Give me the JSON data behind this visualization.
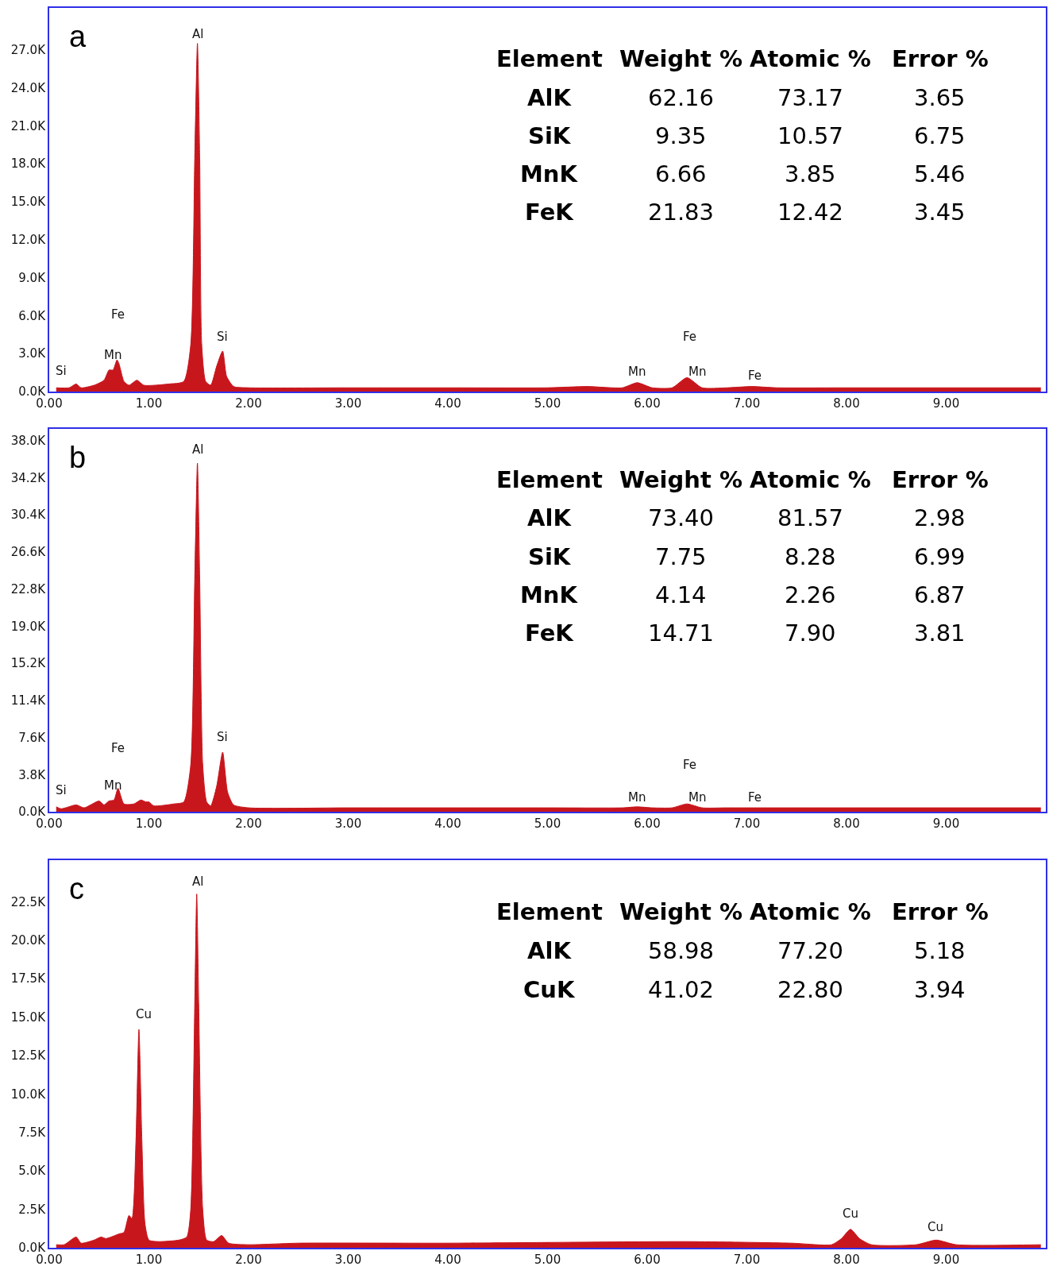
{
  "chart_data": [
    {
      "type": "area",
      "title": "a",
      "color": "#c8161d",
      "x": [
        0.07,
        0.2,
        0.27,
        0.32,
        0.45,
        0.55,
        0.6,
        0.64,
        0.68,
        0.7,
        0.75,
        0.8,
        0.88,
        0.95,
        1.2,
        1.35,
        1.42,
        1.46,
        1.487,
        1.51,
        1.53,
        1.57,
        1.62,
        1.68,
        1.74,
        1.78,
        1.85,
        2.0,
        3.0,
        4.0,
        5.0,
        5.4,
        5.75,
        5.9,
        6.05,
        6.25,
        6.4,
        6.55,
        6.8,
        7.05,
        7.3,
        8.0,
        9.95
      ],
      "values": [
        300,
        300,
        600,
        300,
        500,
        900,
        1700,
        1700,
        2500,
        2200,
        800,
        500,
        900,
        500,
        600,
        800,
        3700,
        18400,
        27500,
        18400,
        3700,
        800,
        500,
        2000,
        3200,
        1200,
        400,
        300,
        300,
        300,
        300,
        400,
        300,
        700,
        300,
        300,
        1100,
        300,
        300,
        400,
        300,
        300,
        300
      ],
      "xlim": [
        0,
        10
      ],
      "xticks": [
        {
          "value": 0,
          "label": "0.00"
        },
        {
          "value": 1,
          "label": "1.00"
        },
        {
          "value": 2,
          "label": "2.00"
        },
        {
          "value": 3,
          "label": "3.00"
        },
        {
          "value": 4,
          "label": "4.00"
        },
        {
          "value": 5,
          "label": "5.00"
        },
        {
          "value": 6,
          "label": "6.00"
        },
        {
          "value": 7,
          "label": "7.00"
        },
        {
          "value": 8,
          "label": "8.00"
        },
        {
          "value": 9,
          "label": "9.00"
        }
      ],
      "ylim": [
        0,
        30300
      ],
      "yticks": [
        {
          "value": 0,
          "label": "0.0K"
        },
        {
          "value": 3000,
          "label": "3.0K"
        },
        {
          "value": 6000,
          "label": "6.0K"
        },
        {
          "value": 9000,
          "label": "9.0K"
        },
        {
          "value": 12000,
          "label": "12.0K"
        },
        {
          "value": 15000,
          "label": "15.0K"
        },
        {
          "value": 18000,
          "label": "18.0K"
        },
        {
          "value": 21000,
          "label": "21.0K"
        },
        {
          "value": 24000,
          "label": "24.0K"
        },
        {
          "value": 27000,
          "label": "27.0K"
        }
      ],
      "annotations": [
        "Si",
        "Mn",
        "Fe",
        "Al",
        "Si",
        "Mn",
        "Fe",
        "Mn",
        "Fe",
        "Element",
        "Weight %",
        "Atomic %",
        "Error %",
        "AlK",
        "62.16",
        "73.17",
        "3.65",
        "SiK",
        "9.35",
        "10.57",
        "6.75",
        "MnK",
        "6.66",
        "3.85",
        "5.46",
        "FeK",
        "21.83",
        "12.42",
        "3.45"
      ]
    },
    {
      "type": "area",
      "title": "b",
      "color": "#c8161d",
      "x": [
        0.07,
        0.12,
        0.27,
        0.35,
        0.5,
        0.55,
        0.6,
        0.65,
        0.69,
        0.75,
        0.85,
        0.92,
        0.97,
        1.0,
        1.05,
        1.25,
        1.35,
        1.42,
        1.46,
        1.487,
        1.51,
        1.54,
        1.58,
        1.62,
        1.68,
        1.74,
        1.79,
        1.85,
        2.0,
        3.0,
        4.0,
        5.0,
        5.75,
        5.9,
        6.05,
        6.25,
        6.4,
        6.55,
        6.8,
        7.05,
        7.3,
        8.0,
        9.95
      ],
      "values": [
        500,
        300,
        700,
        400,
        1100,
        700,
        1100,
        1200,
        2400,
        800,
        800,
        1200,
        1000,
        1000,
        600,
        800,
        1000,
        4800,
        23800,
        35700,
        23800,
        4800,
        1000,
        600,
        2600,
        6100,
        2000,
        700,
        400,
        400,
        400,
        400,
        400,
        500,
        400,
        400,
        800,
        400,
        400,
        400,
        400,
        400,
        400
      ],
      "xlim": [
        0,
        10
      ],
      "xticks": [
        {
          "value": 0,
          "label": "0.00"
        },
        {
          "value": 1,
          "label": "1.00"
        },
        {
          "value": 2,
          "label": "2.00"
        },
        {
          "value": 3,
          "label": "3.00"
        },
        {
          "value": 4,
          "label": "4.00"
        },
        {
          "value": 5,
          "label": "5.00"
        },
        {
          "value": 6,
          "label": "6.00"
        },
        {
          "value": 7,
          "label": "7.00"
        },
        {
          "value": 8,
          "label": "8.00"
        },
        {
          "value": 9,
          "label": "9.00"
        }
      ],
      "ylim": [
        0,
        39200
      ],
      "yticks": [
        {
          "value": 0,
          "label": "0.0K"
        },
        {
          "value": 3800,
          "label": "3.8K"
        },
        {
          "value": 7600,
          "label": "7.6K"
        },
        {
          "value": 11400,
          "label": "11.4K"
        },
        {
          "value": 15200,
          "label": "15.2K"
        },
        {
          "value": 19000,
          "label": "19.0K"
        },
        {
          "value": 22800,
          "label": "22.8K"
        },
        {
          "value": 26600,
          "label": "26.6K"
        },
        {
          "value": 30400,
          "label": "30.4K"
        },
        {
          "value": 34200,
          "label": "34.2K"
        },
        {
          "value": 38000,
          "label": "38.0K"
        }
      ],
      "annotations": [
        "Si",
        "Mn",
        "Fe",
        "Al",
        "Si",
        "Mn",
        "Fe",
        "Mn",
        "Fe",
        "Element",
        "Weight %",
        "Atomic %",
        "Error %",
        "AlK",
        "73.40",
        "81.57",
        "2.98",
        "SiK",
        "7.75",
        "8.28",
        "6.99",
        "MnK",
        "4.14",
        "2.26",
        "6.87",
        "FeK",
        "14.71",
        "7.90",
        "3.81"
      ]
    },
    {
      "type": "area",
      "title": "c",
      "color": "#c8161d",
      "x": [
        0.07,
        0.15,
        0.27,
        0.32,
        0.45,
        0.52,
        0.57,
        0.7,
        0.75,
        0.8,
        0.83,
        0.87,
        0.9,
        0.93,
        0.96,
        1.0,
        1.1,
        1.3,
        1.38,
        1.42,
        1.46,
        1.48,
        1.5,
        1.54,
        1.58,
        1.65,
        1.73,
        1.8,
        2.0,
        2.5,
        4.0,
        6.4,
        7.45,
        7.85,
        7.95,
        8.04,
        8.13,
        8.25,
        8.7,
        8.9,
        9.1,
        9.95
      ],
      "values": [
        200,
        200,
        700,
        300,
        500,
        700,
        600,
        900,
        1000,
        2100,
        1900,
        6900,
        14200,
        6900,
        1600,
        500,
        400,
        500,
        700,
        2500,
        15800,
        23000,
        15800,
        2500,
        500,
        400,
        800,
        300,
        200,
        300,
        300,
        400,
        300,
        200,
        600,
        1200,
        600,
        200,
        200,
        500,
        200,
        200
      ],
      "xlim": [
        0,
        10
      ],
      "xticks": [
        {
          "value": 0,
          "label": "0.00"
        },
        {
          "value": 1,
          "label": "1.00"
        },
        {
          "value": 2,
          "label": "2.00"
        },
        {
          "value": 3,
          "label": "3.00"
        },
        {
          "value": 4,
          "label": "4.00"
        },
        {
          "value": 5,
          "label": "5.00"
        },
        {
          "value": 6,
          "label": "6.00"
        },
        {
          "value": 7,
          "label": "7.00"
        },
        {
          "value": 8,
          "label": "8.00"
        },
        {
          "value": 9,
          "label": "9.00"
        }
      ],
      "ylim": [
        0,
        25200
      ],
      "yticks": [
        {
          "value": 0,
          "label": "0.0K"
        },
        {
          "value": 2500,
          "label": "2.5K"
        },
        {
          "value": 5000,
          "label": "5.0K"
        },
        {
          "value": 7500,
          "label": "7.5K"
        },
        {
          "value": 10000,
          "label": "10.0K"
        },
        {
          "value": 12500,
          "label": "12.5K"
        },
        {
          "value": 15000,
          "label": "15.0K"
        },
        {
          "value": 17500,
          "label": "17.5K"
        },
        {
          "value": 20000,
          "label": "20.0K"
        },
        {
          "value": 22500,
          "label": "22.5K"
        }
      ],
      "annotations": [
        "Cu",
        "Al",
        "Cu",
        "Cu",
        "Element",
        "Weight %",
        "Atomic %",
        "Error %",
        "AlK",
        "58.98",
        "77.20",
        "5.18",
        "CuK",
        "41.02",
        "22.80",
        "3.94"
      ]
    }
  ]
}
